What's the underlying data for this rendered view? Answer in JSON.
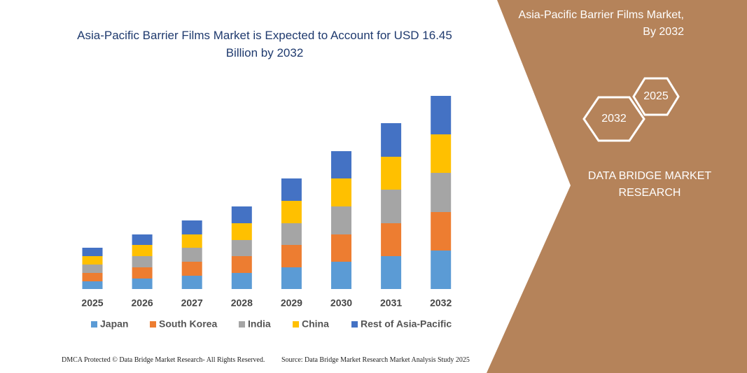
{
  "chart_data": {
    "type": "stacked-bar",
    "title": "Asia-Pacific Barrier Films Market is Expected to Account for USD 16.45 Billion by 2032",
    "categories": [
      "2025",
      "2026",
      "2027",
      "2028",
      "2029",
      "2030",
      "2031",
      "2032"
    ],
    "series": [
      {
        "name": "Japan",
        "color": "#5b9bd5",
        "values": [
          11,
          15,
          19,
          23,
          31,
          39,
          47,
          55
        ]
      },
      {
        "name": "South Korea",
        "color": "#ed7d31",
        "values": [
          12,
          16,
          20,
          24,
          32,
          39,
          47,
          55
        ]
      },
      {
        "name": "India",
        "color": "#a5a5a5",
        "values": [
          12,
          16,
          20,
          23,
          31,
          40,
          48,
          56
        ]
      },
      {
        "name": "China",
        "color": "#ffc000",
        "values": [
          12,
          16,
          19,
          24,
          32,
          40,
          47,
          55
        ]
      },
      {
        "name": "Rest of Asia-Pacific",
        "color": "#4472c4",
        "values": [
          12,
          15,
          20,
          24,
          32,
          39,
          48,
          55
        ]
      }
    ]
  },
  "panel": {
    "title": "Asia-Pacific Barrier Films Market, By 2032",
    "hex_front": "2025",
    "hex_back": "2032",
    "brand": "DATA BRIDGE MARKET RESEARCH"
  },
  "footer": {
    "left": "DMCA Protected © Data Bridge Market Research-  All Rights Reserved.",
    "right": "Source: Data Bridge Market Research  Market Analysis Study 2025"
  }
}
